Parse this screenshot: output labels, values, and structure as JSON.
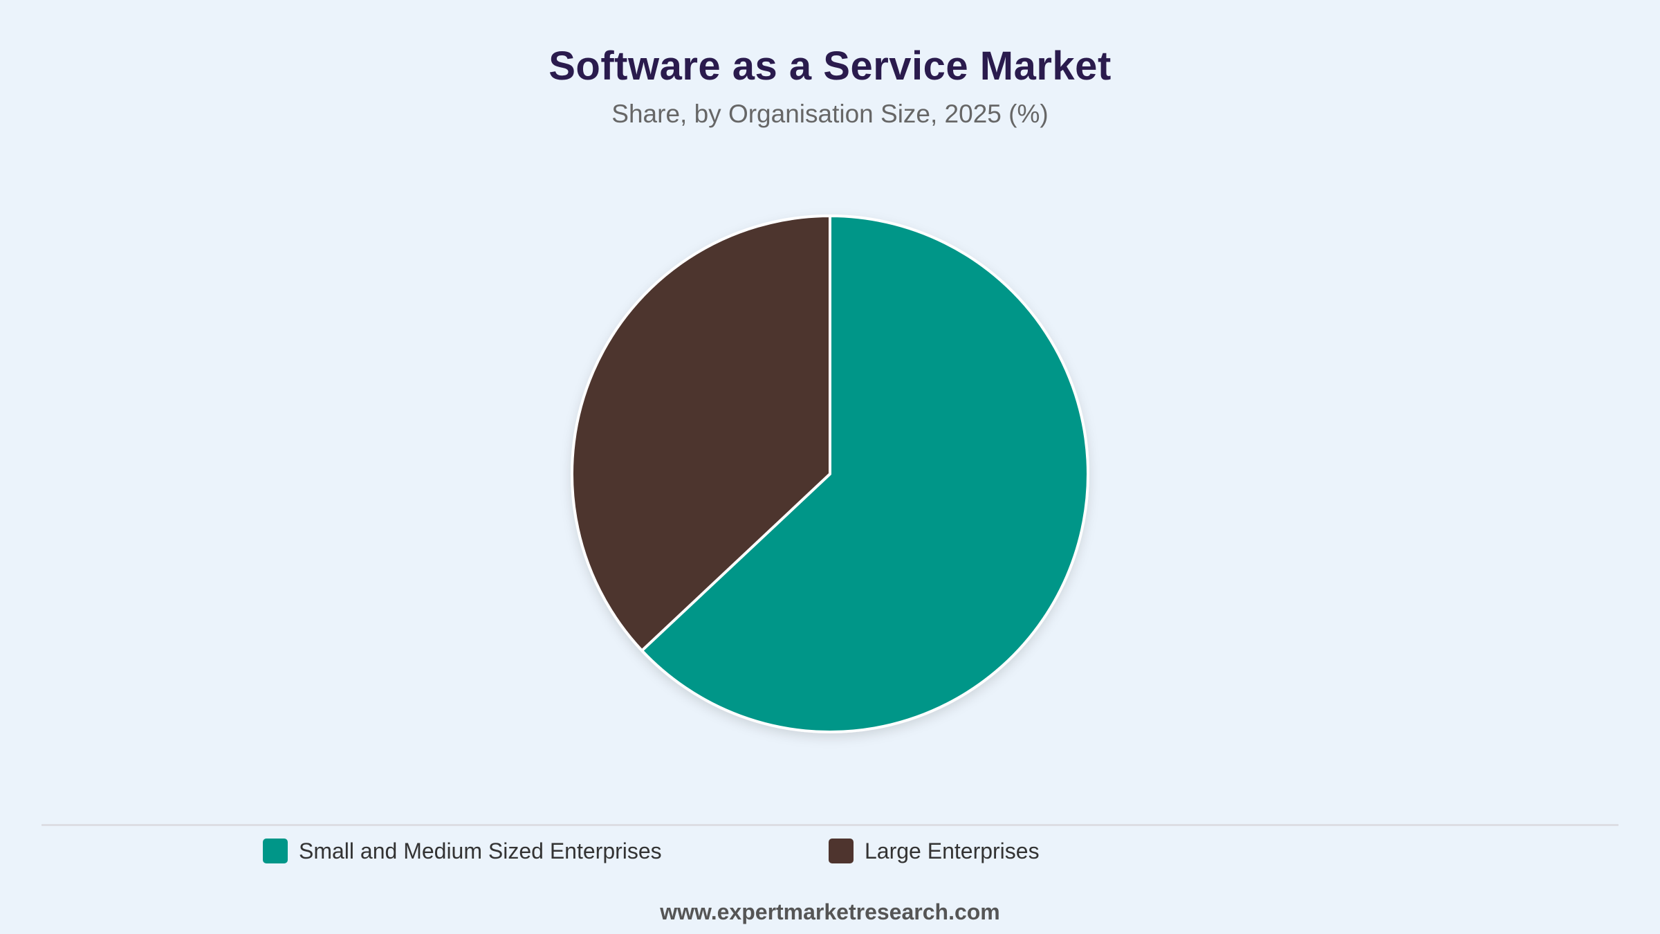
{
  "chart_data": {
    "type": "pie",
    "title": "Software as a Service Market",
    "subtitle": "Share, by Organisation Size, 2025 (%)",
    "series": [
      {
        "name": "Small and Medium Sized Enterprises",
        "value": 63,
        "color": "#009688"
      },
      {
        "name": "Large Enterprises",
        "value": 37,
        "color": "#4e342e"
      }
    ],
    "legend_position": "bottom"
  },
  "footer": {
    "source": "www.expertmarketresearch.com"
  }
}
